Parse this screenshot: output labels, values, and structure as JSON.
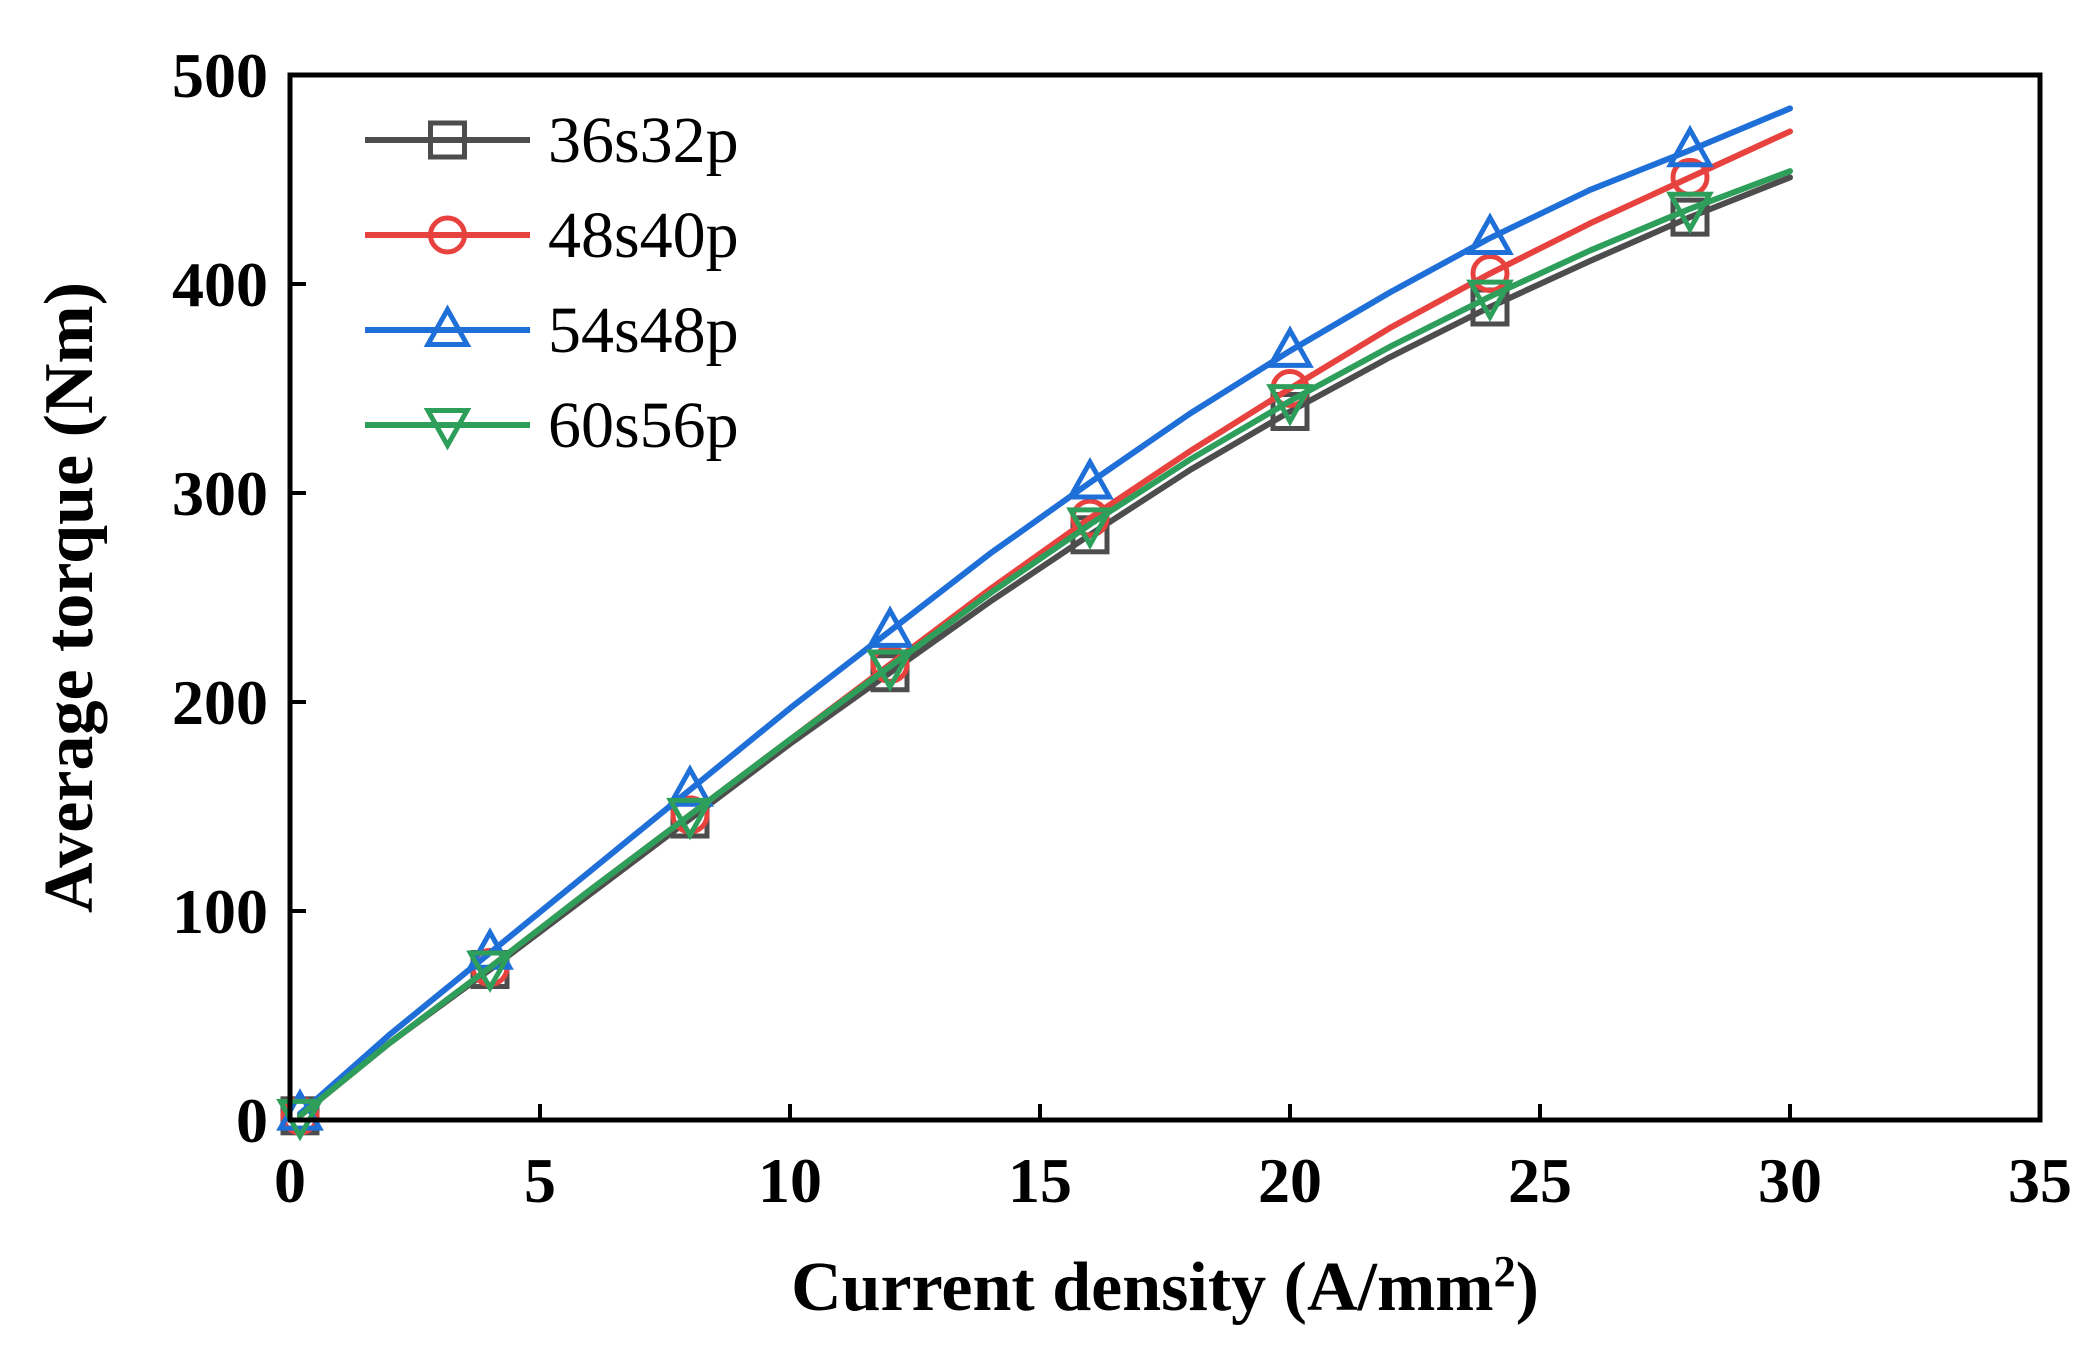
{
  "chart_data": {
    "type": "line",
    "title": "",
    "xlabel": "Current density (A/mm",
    "xlabel_sup": "2",
    "xlabel_end": ")",
    "ylabel": "Average torque (Nm)",
    "xlim": [
      0,
      35
    ],
    "ylim": [
      0,
      500
    ],
    "xticks": [
      0,
      5,
      10,
      15,
      20,
      25,
      30,
      35
    ],
    "yticks": [
      0,
      100,
      200,
      300,
      400,
      500
    ],
    "xtick_labels": [
      "0",
      "5",
      "10",
      "15",
      "20",
      "25",
      "30",
      "35"
    ],
    "ytick_labels": [
      "0",
      "100",
      "200",
      "300",
      "400",
      "500"
    ],
    "grid": false,
    "legend_position": "top-left",
    "series": [
      {
        "name": "36s32p",
        "color": "#4d4d4d",
        "marker": "square",
        "marker_x": [
          0.2,
          4,
          8,
          12,
          16,
          20,
          24,
          28
        ],
        "marker_y": [
          2,
          72,
          144,
          214,
          280,
          339,
          389,
          432
        ],
        "curve_x": [
          0.2,
          2,
          4,
          6,
          8,
          10,
          12,
          14,
          16,
          18,
          20,
          22,
          24,
          26,
          28,
          30
        ],
        "curve_y": [
          2,
          37,
          72,
          108,
          144,
          180,
          214,
          248,
          280,
          311,
          339,
          365,
          389,
          411,
          432,
          451
        ]
      },
      {
        "name": "48s40p",
        "color": "#e8423f",
        "marker": "circle",
        "marker_x": [
          0.2,
          4,
          8,
          12,
          16,
          20,
          24,
          28
        ],
        "marker_y": [
          2,
          73,
          146,
          218,
          288,
          350,
          405,
          451
        ],
        "curve_x": [
          0.2,
          2,
          4,
          6,
          8,
          10,
          12,
          14,
          16,
          18,
          20,
          22,
          24,
          26,
          28,
          30
        ],
        "curve_y": [
          2,
          37,
          73,
          110,
          146,
          182,
          218,
          254,
          288,
          320,
          350,
          379,
          405,
          429,
          451,
          473
        ]
      },
      {
        "name": "54s48p",
        "color": "#1f6fd8",
        "marker": "triangle-up",
        "marker_x": [
          0.2,
          4,
          8,
          12,
          16,
          20,
          24,
          28
        ],
        "marker_y": [
          3,
          80,
          158,
          234,
          305,
          368,
          422,
          464
        ],
        "curve_x": [
          0.2,
          2,
          4,
          6,
          8,
          10,
          12,
          14,
          16,
          18,
          20,
          22,
          24,
          26,
          28,
          30
        ],
        "curve_y": [
          3,
          41,
          80,
          119,
          158,
          197,
          234,
          271,
          305,
          338,
          368,
          396,
          422,
          445,
          464,
          484
        ]
      },
      {
        "name": "60s56p",
        "color": "#2e9e5b",
        "marker": "triangle-down",
        "marker_x": [
          0.2,
          4,
          8,
          12,
          16,
          20,
          24,
          28
        ],
        "marker_y": [
          2,
          73,
          146,
          217,
          285,
          344,
          394,
          436
        ],
        "curve_x": [
          0.2,
          2,
          4,
          6,
          8,
          10,
          12,
          14,
          16,
          18,
          20,
          22,
          24,
          26,
          28,
          30
        ],
        "curve_y": [
          2,
          37,
          73,
          110,
          146,
          182,
          217,
          252,
          285,
          316,
          344,
          370,
          394,
          416,
          436,
          454
        ]
      }
    ]
  }
}
